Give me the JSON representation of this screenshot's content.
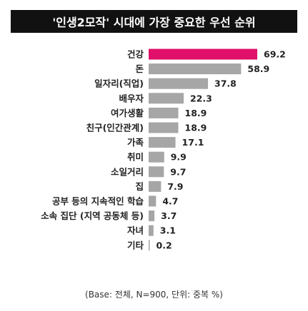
{
  "title": "'인생2모작' 시대에 가장 중요한 우선 순위",
  "footnote": "(Base: 전체, N=900, 단위: 중복 %)",
  "colors": {
    "highlight": "#e0106a",
    "bar": "#a6a6a6",
    "title_bg": "#111111"
  },
  "chart_data": {
    "type": "bar",
    "orientation": "horizontal",
    "title": "'인생2모작' 시대에 가장 중요한 우선 순위",
    "categories": [
      "건강",
      "돈",
      "일자리(직업)",
      "배우자",
      "여가생활",
      "친구(인간관계)",
      "가족",
      "취미",
      "소일거리",
      "집",
      "공부 등의 지속적인 학습",
      "소속 집단 (지역 공동체 등)",
      "자녀",
      "기타"
    ],
    "values": [
      69.2,
      58.9,
      37.8,
      22.3,
      18.9,
      18.9,
      17.1,
      9.9,
      9.7,
      7.9,
      4.7,
      3.7,
      3.1,
      0.2
    ],
    "value_labels": [
      "69.2",
      "58.9",
      "37.8",
      "22.3",
      "18.9",
      "18.9",
      "17.1",
      "9.9",
      "9.7",
      "7.9",
      "4.7",
      "3.7",
      "3.1",
      "0.2"
    ],
    "highlight_index": 0,
    "xlim": [
      0,
      70
    ],
    "grid": false,
    "legend": "none"
  }
}
